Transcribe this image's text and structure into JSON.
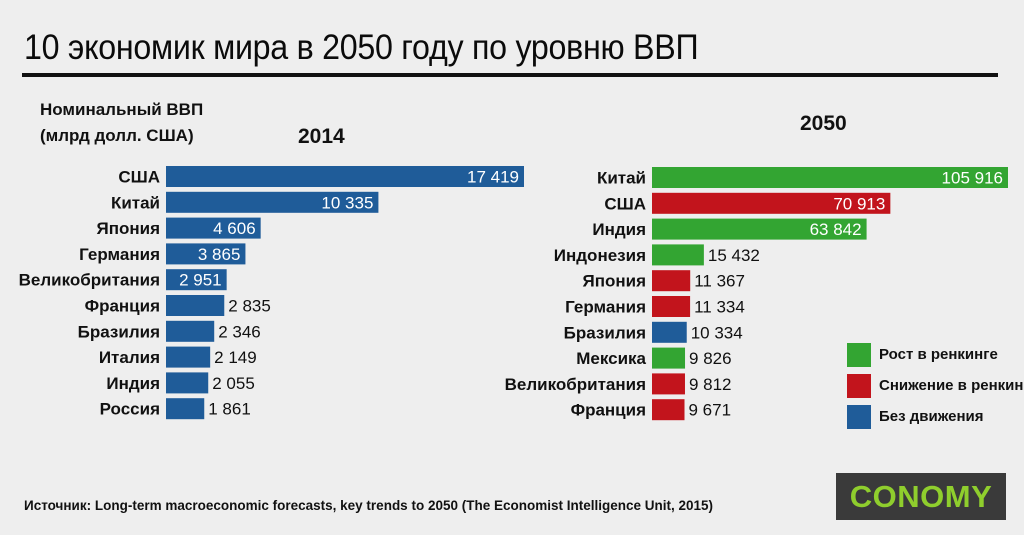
{
  "title": "10 экономик мира в 2050 году по уровню ВВП",
  "ylabel_line1": "Номинальный ВВП",
  "ylabel_line2": "(млрд долл. США)",
  "source": "Источник: Long-term macroeconomic forecasts, key trends to 2050 (The Economist Intelligence Unit, 2015)",
  "logo": "CONOMY",
  "colors": {
    "blue": "#1f5c99",
    "green": "#33a532",
    "red": "#c2141c"
  },
  "legend": [
    {
      "label": "Рост в ренкинге",
      "color": "#33a532"
    },
    {
      "label": "Снижение в ренкинге",
      "color": "#c2141c"
    },
    {
      "label": "Без движения",
      "color": "#1f5c99"
    }
  ],
  "chart_data": [
    {
      "type": "bar",
      "orientation": "horizontal",
      "title": "2014",
      "categories": [
        "США",
        "Китай",
        "Япония",
        "Германия",
        "Великобритания",
        "Франция",
        "Бразилия",
        "Италия",
        "Индия",
        "Россия"
      ],
      "values": [
        17419,
        10335,
        4606,
        3865,
        2951,
        2835,
        2346,
        2149,
        2055,
        1861
      ],
      "value_labels": [
        "17 419",
        "10 335",
        "4 606",
        "3 865",
        "2 951",
        "2 835",
        "2 346",
        "2 149",
        "2 055",
        "1 861"
      ],
      "colors": [
        "blue",
        "blue",
        "blue",
        "blue",
        "blue",
        "blue",
        "blue",
        "blue",
        "blue",
        "blue"
      ],
      "xlim": [
        0,
        17419
      ]
    },
    {
      "type": "bar",
      "orientation": "horizontal",
      "title": "2050",
      "categories": [
        "Китай",
        "США",
        "Индия",
        "Индонезия",
        "Япония",
        "Германия",
        "Бразилия",
        "Мексика",
        "Великобритания",
        "Франция"
      ],
      "values": [
        105916,
        70913,
        63842,
        15432,
        11367,
        11334,
        10334,
        9826,
        9812,
        9671
      ],
      "value_labels": [
        "105 916",
        "70 913",
        "63 842",
        "15 432",
        "11 367",
        "11 334",
        "10 334",
        "9 826",
        "9 812",
        "9 671"
      ],
      "colors": [
        "green",
        "red",
        "green",
        "green",
        "red",
        "red",
        "blue",
        "green",
        "red",
        "red"
      ],
      "xlim": [
        0,
        105916
      ]
    }
  ]
}
